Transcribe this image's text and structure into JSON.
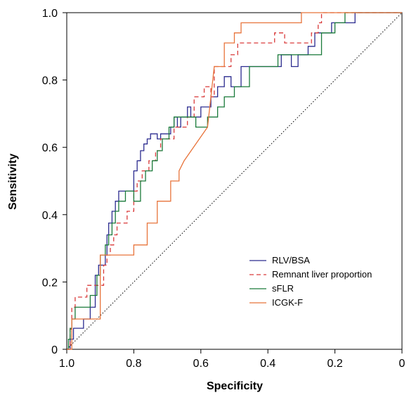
{
  "chart_data": {
    "type": "line",
    "xlabel": "Specificity",
    "ylabel": "Sensitivity",
    "xlim": [
      1.0,
      0.0
    ],
    "ylim": [
      0.0,
      1.0
    ],
    "x_reversed": true,
    "grid": false,
    "legend_position": "bottom-right",
    "x_ticks": [
      {
        "value": 1.0,
        "label": "1.0"
      },
      {
        "value": 0.8,
        "label": "0.8"
      },
      {
        "value": 0.6,
        "label": "0.6"
      },
      {
        "value": 0.4,
        "label": "0.4"
      },
      {
        "value": 0.2,
        "label": "0.2"
      },
      {
        "value": 0.0,
        "label": "0"
      }
    ],
    "y_ticks": [
      {
        "value": 0.0,
        "label": "0"
      },
      {
        "value": 0.2,
        "label": "0.2"
      },
      {
        "value": 0.4,
        "label": "0.4"
      },
      {
        "value": 0.6,
        "label": "0.6"
      },
      {
        "value": 0.8,
        "label": "0.8"
      },
      {
        "value": 1.0,
        "label": "1.0"
      }
    ],
    "reference_line": {
      "x": [
        1.0,
        0.0
      ],
      "y": [
        0.0,
        1.0
      ],
      "color": "#000000",
      "dash": "dotted"
    },
    "series": [
      {
        "name": "RLV/BSA",
        "color": "#2b2b8f",
        "dash": "solid",
        "x": [
          1.0,
          0.99,
          0.99,
          0.98,
          0.98,
          0.95,
          0.95,
          0.93,
          0.93,
          0.915,
          0.915,
          0.905,
          0.905,
          0.885,
          0.885,
          0.88,
          0.88,
          0.875,
          0.875,
          0.865,
          0.865,
          0.855,
          0.855,
          0.845,
          0.845,
          0.8,
          0.8,
          0.79,
          0.79,
          0.78,
          0.78,
          0.77,
          0.77,
          0.76,
          0.76,
          0.75,
          0.75,
          0.73,
          0.73,
          0.72,
          0.72,
          0.69,
          0.69,
          0.68,
          0.68,
          0.67,
          0.67,
          0.66,
          0.66,
          0.64,
          0.64,
          0.63,
          0.63,
          0.6,
          0.6,
          0.57,
          0.57,
          0.55,
          0.55,
          0.53,
          0.53,
          0.51,
          0.51,
          0.48,
          0.48,
          0.36,
          0.36,
          0.33,
          0.33,
          0.31,
          0.31,
          0.28,
          0.28,
          0.26,
          0.26,
          0.225,
          0.225,
          0.21,
          0.21,
          0.14,
          0.14,
          0.0
        ],
        "y": [
          0.0,
          0.0,
          0.03,
          0.03,
          0.0625,
          0.0625,
          0.09,
          0.09,
          0.125,
          0.125,
          0.22,
          0.22,
          0.25,
          0.25,
          0.28,
          0.28,
          0.34,
          0.34,
          0.375,
          0.375,
          0.41,
          0.41,
          0.44,
          0.44,
          0.47,
          0.47,
          0.53,
          0.53,
          0.56,
          0.56,
          0.59,
          0.59,
          0.61,
          0.61,
          0.625,
          0.625,
          0.64,
          0.64,
          0.625,
          0.625,
          0.64,
          0.64,
          0.66,
          0.66,
          0.69,
          0.69,
          0.66,
          0.66,
          0.69,
          0.69,
          0.72,
          0.72,
          0.69,
          0.69,
          0.72,
          0.72,
          0.75,
          0.75,
          0.78,
          0.78,
          0.81,
          0.81,
          0.78,
          0.78,
          0.84,
          0.84,
          0.875,
          0.875,
          0.84,
          0.84,
          0.875,
          0.875,
          0.9,
          0.9,
          0.94,
          0.94,
          0.94,
          0.94,
          0.97,
          0.97,
          1.0,
          1.0
        ]
      },
      {
        "name": "Remnant liver proportion",
        "color": "#d93a3a",
        "dash": "dashed",
        "x": [
          1.0,
          0.99,
          0.99,
          0.985,
          0.985,
          0.975,
          0.975,
          0.94,
          0.94,
          0.89,
          0.89,
          0.88,
          0.88,
          0.87,
          0.87,
          0.86,
          0.86,
          0.85,
          0.85,
          0.82,
          0.82,
          0.8,
          0.8,
          0.79,
          0.79,
          0.775,
          0.775,
          0.755,
          0.755,
          0.735,
          0.735,
          0.72,
          0.72,
          0.68,
          0.68,
          0.64,
          0.64,
          0.62,
          0.62,
          0.59,
          0.59,
          0.57,
          0.57,
          0.56,
          0.56,
          0.51,
          0.51,
          0.49,
          0.49,
          0.38,
          0.38,
          0.35,
          0.35,
          0.27,
          0.27,
          0.25,
          0.25,
          0.24,
          0.24,
          0.16,
          0.16,
          0.14,
          0.14,
          0.0
        ],
        "y": [
          0.0,
          0.0,
          0.06,
          0.06,
          0.125,
          0.125,
          0.155,
          0.155,
          0.19,
          0.19,
          0.25,
          0.25,
          0.28,
          0.28,
          0.31,
          0.31,
          0.34,
          0.34,
          0.375,
          0.375,
          0.41,
          0.41,
          0.47,
          0.47,
          0.5,
          0.5,
          0.53,
          0.53,
          0.56,
          0.56,
          0.59,
          0.59,
          0.625,
          0.625,
          0.66,
          0.66,
          0.69,
          0.69,
          0.75,
          0.75,
          0.78,
          0.78,
          0.75,
          0.75,
          0.84,
          0.84,
          0.875,
          0.875,
          0.91,
          0.91,
          0.94,
          0.94,
          0.91,
          0.91,
          0.94,
          0.94,
          0.97,
          0.97,
          1.0,
          1.0,
          1.0,
          1.0,
          1.0,
          1.0
        ]
      },
      {
        "name": "sFLR",
        "color": "#1a7a3a",
        "dash": "solid",
        "x": [
          1.0,
          0.995,
          0.995,
          0.99,
          0.99,
          0.985,
          0.985,
          0.975,
          0.975,
          0.93,
          0.93,
          0.91,
          0.91,
          0.9,
          0.9,
          0.885,
          0.885,
          0.875,
          0.875,
          0.865,
          0.865,
          0.855,
          0.855,
          0.845,
          0.845,
          0.825,
          0.825,
          0.8,
          0.8,
          0.78,
          0.78,
          0.765,
          0.765,
          0.745,
          0.745,
          0.73,
          0.73,
          0.715,
          0.715,
          0.695,
          0.695,
          0.68,
          0.68,
          0.615,
          0.615,
          0.58,
          0.58,
          0.55,
          0.55,
          0.53,
          0.53,
          0.5,
          0.5,
          0.455,
          0.455,
          0.45,
          0.45,
          0.37,
          0.37,
          0.29,
          0.29,
          0.24,
          0.24,
          0.2,
          0.2,
          0.17,
          0.17,
          0.0
        ],
        "y": [
          0.0,
          0.0,
          0.03,
          0.03,
          0.0625,
          0.0625,
          0.09,
          0.09,
          0.125,
          0.125,
          0.16,
          0.16,
          0.22,
          0.22,
          0.28,
          0.28,
          0.31,
          0.31,
          0.34,
          0.34,
          0.375,
          0.375,
          0.41,
          0.41,
          0.44,
          0.44,
          0.47,
          0.47,
          0.44,
          0.44,
          0.5,
          0.5,
          0.53,
          0.53,
          0.56,
          0.56,
          0.59,
          0.59,
          0.625,
          0.625,
          0.66,
          0.66,
          0.69,
          0.69,
          0.66,
          0.66,
          0.69,
          0.69,
          0.72,
          0.72,
          0.75,
          0.75,
          0.78,
          0.78,
          0.84,
          0.84,
          0.84,
          0.84,
          0.875,
          0.875,
          0.875,
          0.875,
          0.94,
          0.94,
          0.97,
          0.97,
          1.0,
          1.0
        ]
      },
      {
        "name": "ICGK-F",
        "color": "#e8743b",
        "dash": "solid",
        "x": [
          1.0,
          0.985,
          0.985,
          0.9,
          0.9,
          0.8,
          0.8,
          0.76,
          0.76,
          0.73,
          0.73,
          0.72,
          0.72,
          0.69,
          0.69,
          0.665,
          0.665,
          0.65,
          0.58,
          0.57,
          0.56,
          0.53,
          0.53,
          0.5,
          0.5,
          0.48,
          0.48,
          0.46,
          0.46,
          0.3,
          0.3,
          0.2,
          0.2,
          0.0
        ],
        "y": [
          0.0,
          0.0,
          0.09,
          0.09,
          0.28,
          0.28,
          0.31,
          0.31,
          0.375,
          0.375,
          0.44,
          0.44,
          0.44,
          0.44,
          0.5,
          0.5,
          0.53,
          0.56,
          0.66,
          0.75,
          0.84,
          0.84,
          0.91,
          0.91,
          0.94,
          0.94,
          0.97,
          0.97,
          0.97,
          0.97,
          1.0,
          1.0,
          1.0,
          1.0
        ]
      }
    ]
  }
}
